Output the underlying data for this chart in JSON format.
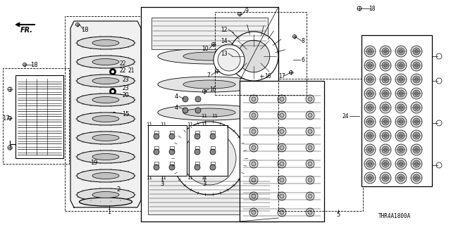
{
  "background_color": "#ffffff",
  "fig_width": 6.4,
  "fig_height": 3.2,
  "dpi": 100,
  "diagram_ref": "THR4A1800A",
  "line_color": "#000000",
  "gray_light": "#cccccc",
  "gray_mid": "#999999",
  "gray_dark": "#555555"
}
